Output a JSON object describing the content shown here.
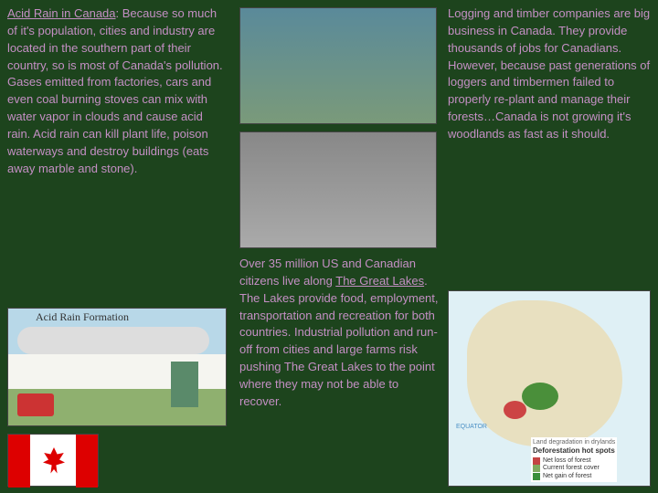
{
  "left": {
    "title": "Acid Rain in Canada",
    "body": ": Because so much of it's population, cities and industry are located in the southern part of their country, so is most of Canada's pollution. Gases emitted from factories, cars and even coal burning stoves can mix with water vapor in clouds and cause acid rain. Acid rain can kill plant life, poison waterways and destroy buildings (eats away marble and stone)."
  },
  "acidrain_diagram": {
    "title": "Acid Rain Formation"
  },
  "mid": {
    "line1": "Over 35 million US and Canadian citizens live along ",
    "lakes": "The Great Lakes",
    "line2": ". The Lakes provide food, employment, transportation and recreation for both countries. Industrial pollution and run-off from cities and large farms risk pushing The Great Lakes to the point where they may not be able to recover."
  },
  "right": {
    "body": "Logging and timber companies are big business in Canada. They provide thousands of jobs for Canadians. However, because past generations of loggers and timbermen failed to properly re-plant and manage their forests…Canada is not growing it's woodlands as fast as it should."
  },
  "map": {
    "equator": "EQUATOR",
    "legend_title_a": "Land degradation in drylands",
    "legend_title_b": "Deforestation hot spots",
    "leg1": "Net loss of forest",
    "leg2": "Current forest cover",
    "leg3": "Net gain of forest",
    "color_loss": "#c44444",
    "color_cover": "#7faa5f",
    "color_gain": "#3a8f3a",
    "color_dryland": "#d8cf8a"
  },
  "colors": {
    "bg": "#1d441d",
    "text": "#c48fc4",
    "flag_red": "#d00000"
  }
}
